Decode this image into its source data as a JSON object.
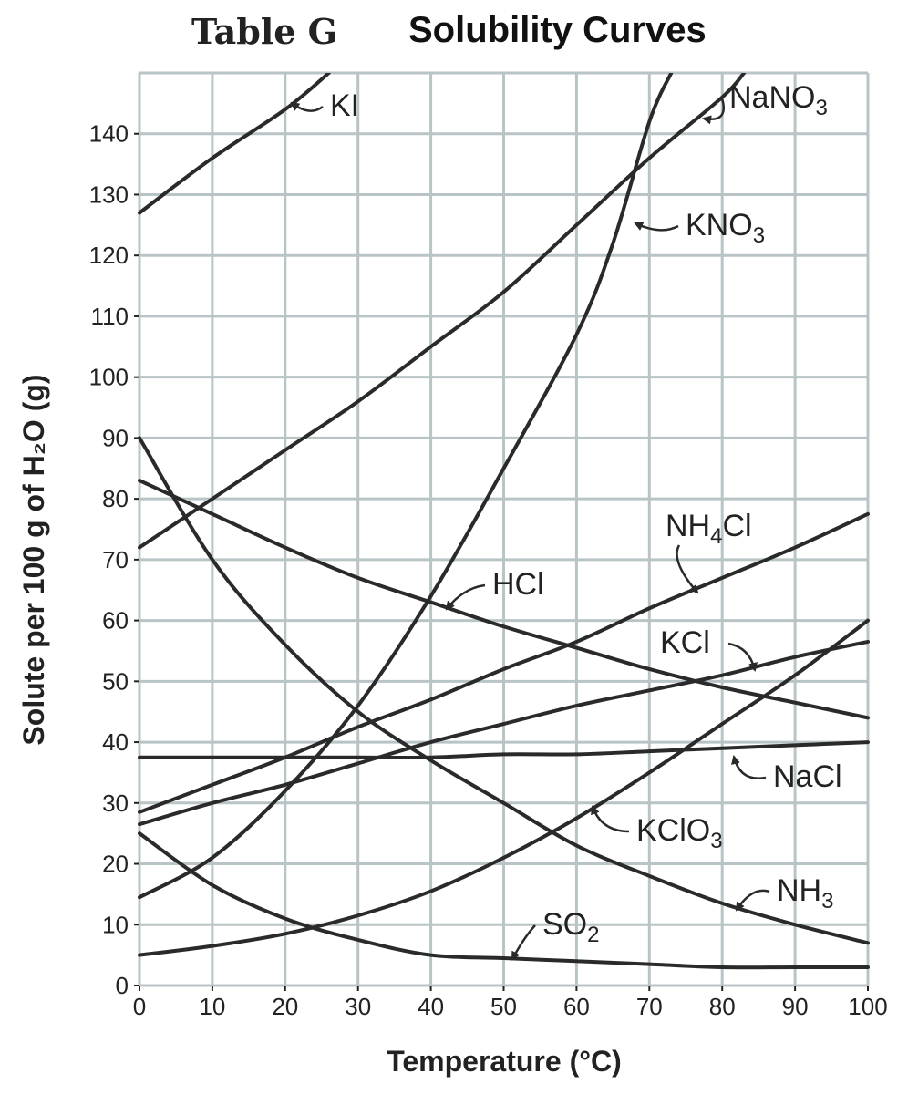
{
  "chart_data": {
    "type": "line",
    "title_prefix": "Table G",
    "title": "Solubility Curves",
    "xlabel": "Temperature (°C)",
    "ylabel": "Solute per 100 g of H₂O (g)",
    "xlim": [
      0,
      100
    ],
    "ylim": [
      0,
      150
    ],
    "xticks": [
      0,
      10,
      20,
      30,
      40,
      50,
      60,
      70,
      80,
      90,
      100
    ],
    "yticks": [
      0,
      10,
      20,
      30,
      40,
      50,
      60,
      70,
      80,
      90,
      100,
      110,
      120,
      130,
      140
    ],
    "grid": true,
    "series": [
      {
        "name": "KI",
        "label_parts": [
          "KI"
        ],
        "x": [
          0,
          10,
          20,
          26
        ],
        "y": [
          127,
          136,
          144,
          150
        ]
      },
      {
        "name": "NaNO3",
        "label_parts": [
          "NaNO",
          "3"
        ],
        "x": [
          0,
          10,
          20,
          30,
          40,
          50,
          60,
          70,
          80,
          83
        ],
        "y": [
          72,
          80,
          88,
          96,
          105,
          114,
          125,
          136,
          146,
          150
        ]
      },
      {
        "name": "KNO3",
        "label_parts": [
          "KNO",
          "3"
        ],
        "x": [
          0,
          10,
          20,
          30,
          40,
          50,
          60,
          65,
          70,
          73
        ],
        "y": [
          14.5,
          21,
          32,
          46,
          64,
          85,
          107,
          122,
          142,
          150
        ]
      },
      {
        "name": "NH4Cl",
        "label_parts": [
          "NH",
          "4",
          "Cl"
        ],
        "x": [
          0,
          10,
          20,
          30,
          40,
          50,
          60,
          70,
          80,
          90,
          100
        ],
        "y": [
          28.5,
          33,
          37.5,
          42.5,
          47,
          52,
          56.5,
          62,
          67,
          72,
          77.5
        ]
      },
      {
        "name": "HCl",
        "label_parts": [
          "HCl"
        ],
        "x": [
          0,
          10,
          20,
          30,
          40,
          50,
          60,
          70,
          80,
          90,
          100
        ],
        "y": [
          83,
          77.5,
          72,
          67,
          63,
          59,
          55.5,
          52,
          49,
          46.5,
          44
        ]
      },
      {
        "name": "KCl",
        "label_parts": [
          "KCl"
        ],
        "x": [
          0,
          10,
          20,
          30,
          40,
          50,
          60,
          70,
          80,
          90,
          100
        ],
        "y": [
          26.5,
          30,
          33,
          36.5,
          40,
          43,
          46,
          48.5,
          51,
          54,
          56.5
        ]
      },
      {
        "name": "NaCl",
        "label_parts": [
          "NaCl"
        ],
        "x": [
          0,
          10,
          20,
          30,
          40,
          50,
          60,
          70,
          80,
          90,
          100
        ],
        "y": [
          37.5,
          37.5,
          37.5,
          37.5,
          37.5,
          38,
          38,
          38.5,
          39,
          39.5,
          40
        ]
      },
      {
        "name": "KClO3",
        "label_parts": [
          "KClO",
          "3"
        ],
        "x": [
          0,
          10,
          20,
          30,
          40,
          50,
          60,
          70,
          80,
          90,
          100
        ],
        "y": [
          5,
          6.5,
          8.5,
          11.5,
          15.5,
          21,
          27.5,
          35,
          43,
          51,
          60
        ]
      },
      {
        "name": "NH3",
        "label_parts": [
          "NH",
          "3"
        ],
        "x": [
          0,
          10,
          20,
          30,
          40,
          50,
          60,
          70,
          80,
          90,
          100
        ],
        "y": [
          90,
          70,
          56,
          45,
          37,
          30,
          23,
          18,
          13.5,
          10,
          7
        ]
      },
      {
        "name": "SO2",
        "label_parts": [
          "SO",
          "2"
        ],
        "x": [
          0,
          10,
          20,
          30,
          40,
          50,
          60,
          70,
          80,
          90,
          100
        ],
        "y": [
          25,
          16.5,
          11,
          7.5,
          5,
          4.5,
          4,
          3.5,
          3,
          3,
          3
        ]
      }
    ]
  }
}
